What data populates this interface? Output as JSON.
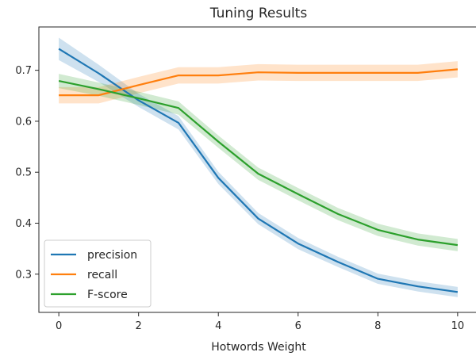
{
  "chart_data": {
    "type": "line",
    "title": "Tuning Results",
    "xlabel": "Hotwords Weight",
    "ylabel": "",
    "xlim": [
      -0.5,
      10.5
    ],
    "ylim": [
      0.225,
      0.785
    ],
    "xticks": [
      0,
      2,
      4,
      6,
      8,
      10
    ],
    "yticks": [
      0.3,
      0.4,
      0.5,
      0.6,
      0.7
    ],
    "xtick_labels": [
      "0",
      "2",
      "4",
      "6",
      "8",
      "10"
    ],
    "ytick_labels": [
      "0.3",
      "0.4",
      "0.5",
      "0.6",
      "0.7"
    ],
    "grid": false,
    "legend_position": "lower-left",
    "x": [
      0,
      1,
      2,
      3,
      4,
      5,
      6,
      7,
      8,
      9,
      10
    ],
    "series": [
      {
        "name": "precision",
        "color": "#1f77b4",
        "values": [
          0.742,
          0.694,
          0.641,
          0.597,
          0.489,
          0.409,
          0.36,
          0.324,
          0.291,
          0.276,
          0.265
        ],
        "ci_half_width": [
          0.022,
          0.017,
          0.013,
          0.013,
          0.012,
          0.011,
          0.011,
          0.01,
          0.01,
          0.01,
          0.01
        ]
      },
      {
        "name": "recall",
        "color": "#ff7f0e",
        "values": [
          0.651,
          0.651,
          0.671,
          0.69,
          0.69,
          0.696,
          0.695,
          0.695,
          0.695,
          0.695,
          0.702
        ],
        "ci_half_width": [
          0.016,
          0.016,
          0.016,
          0.016,
          0.016,
          0.016,
          0.016,
          0.016,
          0.016,
          0.016,
          0.016
        ]
      },
      {
        "name": "F-score",
        "color": "#2ca02c",
        "values": [
          0.679,
          0.663,
          0.645,
          0.626,
          0.56,
          0.497,
          0.457,
          0.418,
          0.387,
          0.368,
          0.357
        ],
        "ci_half_width": [
          0.014,
          0.013,
          0.013,
          0.013,
          0.012,
          0.012,
          0.012,
          0.012,
          0.012,
          0.012,
          0.012
        ]
      }
    ]
  }
}
